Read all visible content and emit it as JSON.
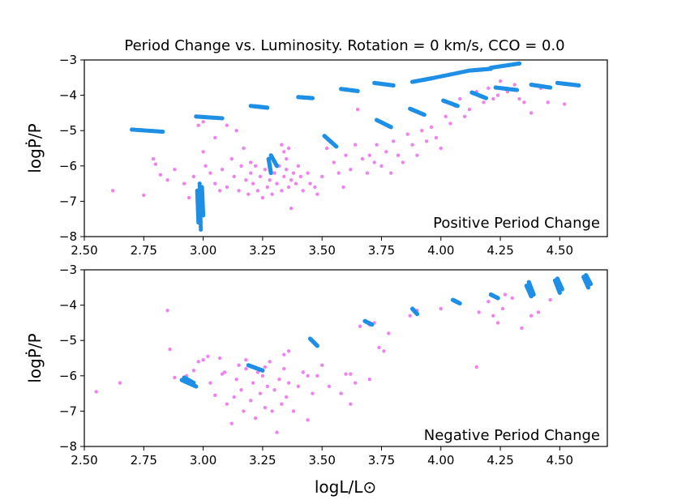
{
  "title": "Period Change vs. Luminosity. Rotation = 0 km/s, CCO = 0.0",
  "xlabel": "logL/L⊙",
  "ylabel": "logṖ/P",
  "colors": {
    "cepheid": "#1f8fe6",
    "observed": "#ee82ee"
  },
  "chart_data": [
    {
      "type": "scatter",
      "panel": "top",
      "annotation": "Positive Period Change",
      "xlim": [
        2.5,
        4.7
      ],
      "ylim": [
        -8,
        -3
      ],
      "xticks": [
        "2.50",
        "2.75",
        "3.00",
        "3.25",
        "3.50",
        "3.75",
        "4.00",
        "4.25",
        "4.50"
      ],
      "yticks": [
        "−3",
        "−4",
        "−5",
        "−6",
        "−7",
        "−8"
      ],
      "series": [
        {
          "name": "model-tracks",
          "tracks": [
            {
              "x0": 2.7,
              "x1": 2.83,
              "y0": -4.97,
              "y1": -5.03
            },
            {
              "x0": 2.97,
              "x1": 3.08,
              "y0": -4.6,
              "y1": -4.65
            },
            {
              "x0": 3.2,
              "x1": 3.27,
              "y0": -4.3,
              "y1": -4.35
            },
            {
              "x0": 3.4,
              "x1": 3.46,
              "y0": -4.05,
              "y1": -4.08
            },
            {
              "x0": 3.58,
              "x1": 3.65,
              "y0": -3.82,
              "y1": -3.88
            },
            {
              "x0": 3.72,
              "x1": 3.8,
              "y0": -3.65,
              "y1": -3.72
            },
            {
              "x0": 3.88,
              "x1": 3.96,
              "y0": -3.62,
              "y1": -3.52
            },
            {
              "x0": 3.96,
              "x1": 4.12,
              "y0": -3.52,
              "y1": -3.3
            },
            {
              "x0": 4.12,
              "x1": 4.21,
              "y0": -3.3,
              "y1": -3.25
            },
            {
              "x0": 4.21,
              "x1": 4.33,
              "y0": -3.22,
              "y1": -3.1
            },
            {
              "x0": 4.23,
              "x1": 4.32,
              "y0": -3.78,
              "y1": -3.85
            },
            {
              "x0": 4.38,
              "x1": 4.46,
              "y0": -3.7,
              "y1": -3.78
            },
            {
              "x0": 4.49,
              "x1": 4.58,
              "y0": -3.65,
              "y1": -3.72
            },
            {
              "x0": 4.13,
              "x1": 4.19,
              "y0": -3.92,
              "y1": -4.08
            },
            {
              "x0": 4.01,
              "x1": 4.07,
              "y0": -4.15,
              "y1": -4.3
            },
            {
              "x0": 3.87,
              "x1": 3.93,
              "y0": -4.38,
              "y1": -4.55
            },
            {
              "x0": 3.73,
              "x1": 3.79,
              "y0": -4.7,
              "y1": -4.9
            },
            {
              "x0": 3.51,
              "x1": 3.56,
              "y0": -5.15,
              "y1": -5.45
            },
            {
              "x0": 3.285,
              "x1": 3.31,
              "y0": -5.7,
              "y1": -6.0
            },
            {
              "x0": 3.275,
              "x1": 3.285,
              "y0": -5.8,
              "y1": -6.2
            },
            {
              "x0": 2.985,
              "x1": 2.99,
              "y0": -6.5,
              "y1": -7.8
            },
            {
              "x0": 2.975,
              "x1": 2.98,
              "y0": -6.7,
              "y1": -7.6
            },
            {
              "x0": 2.995,
              "x1": 3.0,
              "y0": -6.6,
              "y1": -7.4
            },
            {
              "x0": 2.99,
              "x1": 2.992,
              "y0": -6.8,
              "y1": -7.2
            }
          ]
        },
        {
          "name": "observed",
          "points": [
            [
              2.62,
              -6.7
            ],
            [
              2.75,
              -6.83
            ],
            [
              2.79,
              -5.8
            ],
            [
              2.8,
              -5.95
            ],
            [
              2.82,
              -6.25
            ],
            [
              2.85,
              -6.4
            ],
            [
              2.88,
              -6.1
            ],
            [
              2.92,
              -6.5
            ],
            [
              2.94,
              -6.9
            ],
            [
              2.96,
              -6.3
            ],
            [
              2.98,
              -4.85
            ],
            [
              3.0,
              -4.75
            ],
            [
              3.01,
              -6.0
            ],
            [
              3.03,
              -6.2
            ],
            [
              3.05,
              -6.5
            ],
            [
              3.07,
              -6.7
            ],
            [
              3.08,
              -6.1
            ],
            [
              3.1,
              -6.6
            ],
            [
              3.12,
              -5.8
            ],
            [
              3.13,
              -6.3
            ],
            [
              3.15,
              -6.7
            ],
            [
              3.16,
              -6.0
            ],
            [
              3.17,
              -5.5
            ],
            [
              3.18,
              -6.4
            ],
            [
              3.19,
              -6.8
            ],
            [
              3.2,
              -6.2
            ],
            [
              3.21,
              -6.5
            ],
            [
              3.22,
              -6.0
            ],
            [
              3.23,
              -6.7
            ],
            [
              3.24,
              -6.3
            ],
            [
              3.25,
              -6.9
            ],
            [
              3.26,
              -6.1
            ],
            [
              3.27,
              -6.6
            ],
            [
              3.28,
              -6.4
            ],
            [
              3.29,
              -6.8
            ],
            [
              3.3,
              -6.2
            ],
            [
              3.31,
              -6.5
            ],
            [
              3.32,
              -6.0
            ],
            [
              3.33,
              -6.7
            ],
            [
              3.34,
              -6.3
            ],
            [
              3.35,
              -6.1
            ],
            [
              3.36,
              -6.6
            ],
            [
              3.37,
              -6.4
            ],
            [
              3.38,
              -6.2
            ],
            [
              3.39,
              -6.5
            ],
            [
              3.4,
              -6.0
            ],
            [
              3.41,
              -6.3
            ],
            [
              3.42,
              -6.7
            ],
            [
              3.44,
              -6.2
            ],
            [
              3.45,
              -6.5
            ],
            [
              3.33,
              -5.4
            ],
            [
              3.34,
              -5.6
            ],
            [
              3.35,
              -5.8
            ],
            [
              3.36,
              -5.5
            ],
            [
              3.37,
              -7.2
            ],
            [
              3.2,
              -5.9
            ],
            [
              3.14,
              -5.0
            ],
            [
              3.1,
              -4.85
            ],
            [
              3.05,
              -5.2
            ],
            [
              3.0,
              -5.6
            ],
            [
              3.47,
              -6.6
            ],
            [
              3.48,
              -6.8
            ],
            [
              3.5,
              -6.3
            ],
            [
              3.52,
              -5.5
            ],
            [
              3.55,
              -5.9
            ],
            [
              3.57,
              -6.2
            ],
            [
              3.59,
              -6.6
            ],
            [
              3.6,
              -5.7
            ],
            [
              3.62,
              -6.1
            ],
            [
              3.64,
              -5.4
            ],
            [
              3.65,
              -4.4
            ],
            [
              3.67,
              -5.8
            ],
            [
              3.69,
              -6.2
            ],
            [
              3.7,
              -5.7
            ],
            [
              3.72,
              -5.9
            ],
            [
              3.73,
              -5.4
            ],
            [
              3.75,
              -6.0
            ],
            [
              3.77,
              -5.6
            ],
            [
              3.79,
              -6.2
            ],
            [
              3.8,
              -5.3
            ],
            [
              3.82,
              -5.7
            ],
            [
              3.84,
              -5.9
            ],
            [
              3.86,
              -5.1
            ],
            [
              3.88,
              -5.4
            ],
            [
              3.9,
              -5.7
            ],
            [
              3.92,
              -5.0
            ],
            [
              3.94,
              -5.3
            ],
            [
              3.96,
              -4.9
            ],
            [
              3.98,
              -5.2
            ],
            [
              4.0,
              -5.5
            ],
            [
              4.02,
              -4.6
            ],
            [
              4.04,
              -4.8
            ],
            [
              4.06,
              -4.3
            ],
            [
              4.08,
              -4.1
            ],
            [
              4.1,
              -4.6
            ],
            [
              4.12,
              -4.4
            ],
            [
              4.15,
              -3.9
            ],
            [
              4.18,
              -4.2
            ],
            [
              4.2,
              -3.8
            ],
            [
              4.22,
              -4.1
            ],
            [
              4.25,
              -3.6
            ],
            [
              4.28,
              -3.9
            ],
            [
              4.31,
              -3.7
            ],
            [
              4.35,
              -4.2
            ],
            [
              4.38,
              -4.5
            ],
            [
              4.42,
              -3.8
            ],
            [
              4.45,
              -4.2
            ],
            [
              4.52,
              -4.25
            ],
            [
              4.33,
              -4.1
            ],
            [
              4.24,
              -4.0
            ]
          ]
        }
      ]
    },
    {
      "type": "scatter",
      "panel": "bottom",
      "annotation": "Negative Period Change",
      "xlim": [
        2.5,
        4.7
      ],
      "ylim": [
        -8,
        -3
      ],
      "xticks": [
        "2.50",
        "2.75",
        "3.00",
        "3.25",
        "3.50",
        "3.75",
        "4.00",
        "4.25",
        "4.50"
      ],
      "yticks": [
        "−3",
        "−4",
        "−5",
        "−6",
        "−7",
        "−8"
      ],
      "series": [
        {
          "name": "model-tracks",
          "tracks": [
            {
              "x0": 2.91,
              "x1": 2.97,
              "y0": -6.12,
              "y1": -6.3
            },
            {
              "x0": 2.92,
              "x1": 2.96,
              "y0": -6.05,
              "y1": -6.2
            },
            {
              "x0": 3.19,
              "x1": 3.25,
              "y0": -5.7,
              "y1": -5.85
            },
            {
              "x0": 3.45,
              "x1": 3.48,
              "y0": -4.95,
              "y1": -5.15
            },
            {
              "x0": 3.68,
              "x1": 3.71,
              "y0": -4.45,
              "y1": -4.55
            },
            {
              "x0": 3.88,
              "x1": 3.9,
              "y0": -4.1,
              "y1": -4.25
            },
            {
              "x0": 4.05,
              "x1": 4.08,
              "y0": -3.85,
              "y1": -3.95
            },
            {
              "x0": 4.21,
              "x1": 4.24,
              "y0": -3.7,
              "y1": -3.8
            },
            {
              "x0": 4.36,
              "x1": 4.38,
              "y0": -3.45,
              "y1": -3.75
            },
            {
              "x0": 4.37,
              "x1": 4.39,
              "y0": -3.35,
              "y1": -3.7
            },
            {
              "x0": 4.48,
              "x1": 4.5,
              "y0": -3.3,
              "y1": -3.65
            },
            {
              "x0": 4.49,
              "x1": 4.51,
              "y0": -3.25,
              "y1": -3.55
            },
            {
              "x0": 4.6,
              "x1": 4.62,
              "y0": -3.2,
              "y1": -3.5
            },
            {
              "x0": 4.61,
              "x1": 4.63,
              "y0": -3.15,
              "y1": -3.4
            }
          ]
        },
        {
          "name": "observed",
          "points": [
            [
              2.55,
              -6.45
            ],
            [
              2.65,
              -6.2
            ],
            [
              2.85,
              -4.15
            ],
            [
              2.86,
              -5.25
            ],
            [
              2.88,
              -6.05
            ],
            [
              2.93,
              -6.0
            ],
            [
              2.96,
              -5.85
            ],
            [
              2.98,
              -5.6
            ],
            [
              3.0,
              -5.55
            ],
            [
              3.02,
              -5.45
            ],
            [
              3.03,
              -6.2
            ],
            [
              3.05,
              -6.55
            ],
            [
              3.07,
              -5.5
            ],
            [
              3.09,
              -5.9
            ],
            [
              3.1,
              -6.8
            ],
            [
              3.12,
              -7.35
            ],
            [
              3.13,
              -6.6
            ],
            [
              3.14,
              -6.1
            ],
            [
              3.15,
              -5.7
            ],
            [
              3.16,
              -6.4
            ],
            [
              3.17,
              -7.0
            ],
            [
              3.18,
              -5.8
            ],
            [
              3.2,
              -6.7
            ],
            [
              3.21,
              -6.2
            ],
            [
              3.22,
              -7.2
            ],
            [
              3.23,
              -5.9
            ],
            [
              3.24,
              -6.5
            ],
            [
              3.25,
              -6.0
            ],
            [
              3.26,
              -6.9
            ],
            [
              3.27,
              -6.3
            ],
            [
              3.28,
              -5.6
            ],
            [
              3.29,
              -7.0
            ],
            [
              3.3,
              -6.4
            ],
            [
              3.31,
              -7.6
            ],
            [
              3.32,
              -6.1
            ],
            [
              3.33,
              -6.8
            ],
            [
              3.34,
              -5.8
            ],
            [
              3.35,
              -6.6
            ],
            [
              3.36,
              -6.2
            ],
            [
              3.38,
              -7.0
            ],
            [
              3.4,
              -6.3
            ],
            [
              3.42,
              -5.9
            ],
            [
              3.44,
              -7.25
            ],
            [
              3.46,
              -6.5
            ],
            [
              3.48,
              -6.0
            ],
            [
              3.5,
              -5.7
            ],
            [
              3.53,
              -6.3
            ],
            [
              3.58,
              -6.5
            ],
            [
              3.6,
              -5.95
            ],
            [
              3.62,
              -6.8
            ],
            [
              3.64,
              -6.2
            ],
            [
              3.66,
              -4.6
            ],
            [
              3.7,
              -4.55
            ],
            [
              3.72,
              -4.5
            ],
            [
              3.74,
              -5.2
            ],
            [
              3.76,
              -5.3
            ],
            [
              3.78,
              -4.8
            ],
            [
              3.87,
              -4.3
            ],
            [
              3.9,
              -4.15
            ],
            [
              4.0,
              -4.1
            ],
            [
              4.15,
              -5.75
            ],
            [
              4.2,
              -3.9
            ],
            [
              4.22,
              -4.3
            ],
            [
              4.24,
              -4.5
            ],
            [
              4.26,
              -4.1
            ],
            [
              4.3,
              -3.8
            ],
            [
              4.34,
              -4.65
            ],
            [
              4.38,
              -4.3
            ],
            [
              4.41,
              -4.2
            ],
            [
              4.46,
              -3.85
            ],
            [
              3.08,
              -5.95
            ],
            [
              3.18,
              -5.55
            ],
            [
              3.26,
              -5.75
            ],
            [
              3.34,
              -5.4
            ],
            [
              3.36,
              -5.3
            ],
            [
              3.44,
              -6.0
            ],
            [
              3.7,
              -6.1
            ],
            [
              3.62,
              -5.95
            ],
            [
              4.27,
              -3.7
            ],
            [
              4.16,
              -4.2
            ]
          ]
        }
      ]
    }
  ]
}
